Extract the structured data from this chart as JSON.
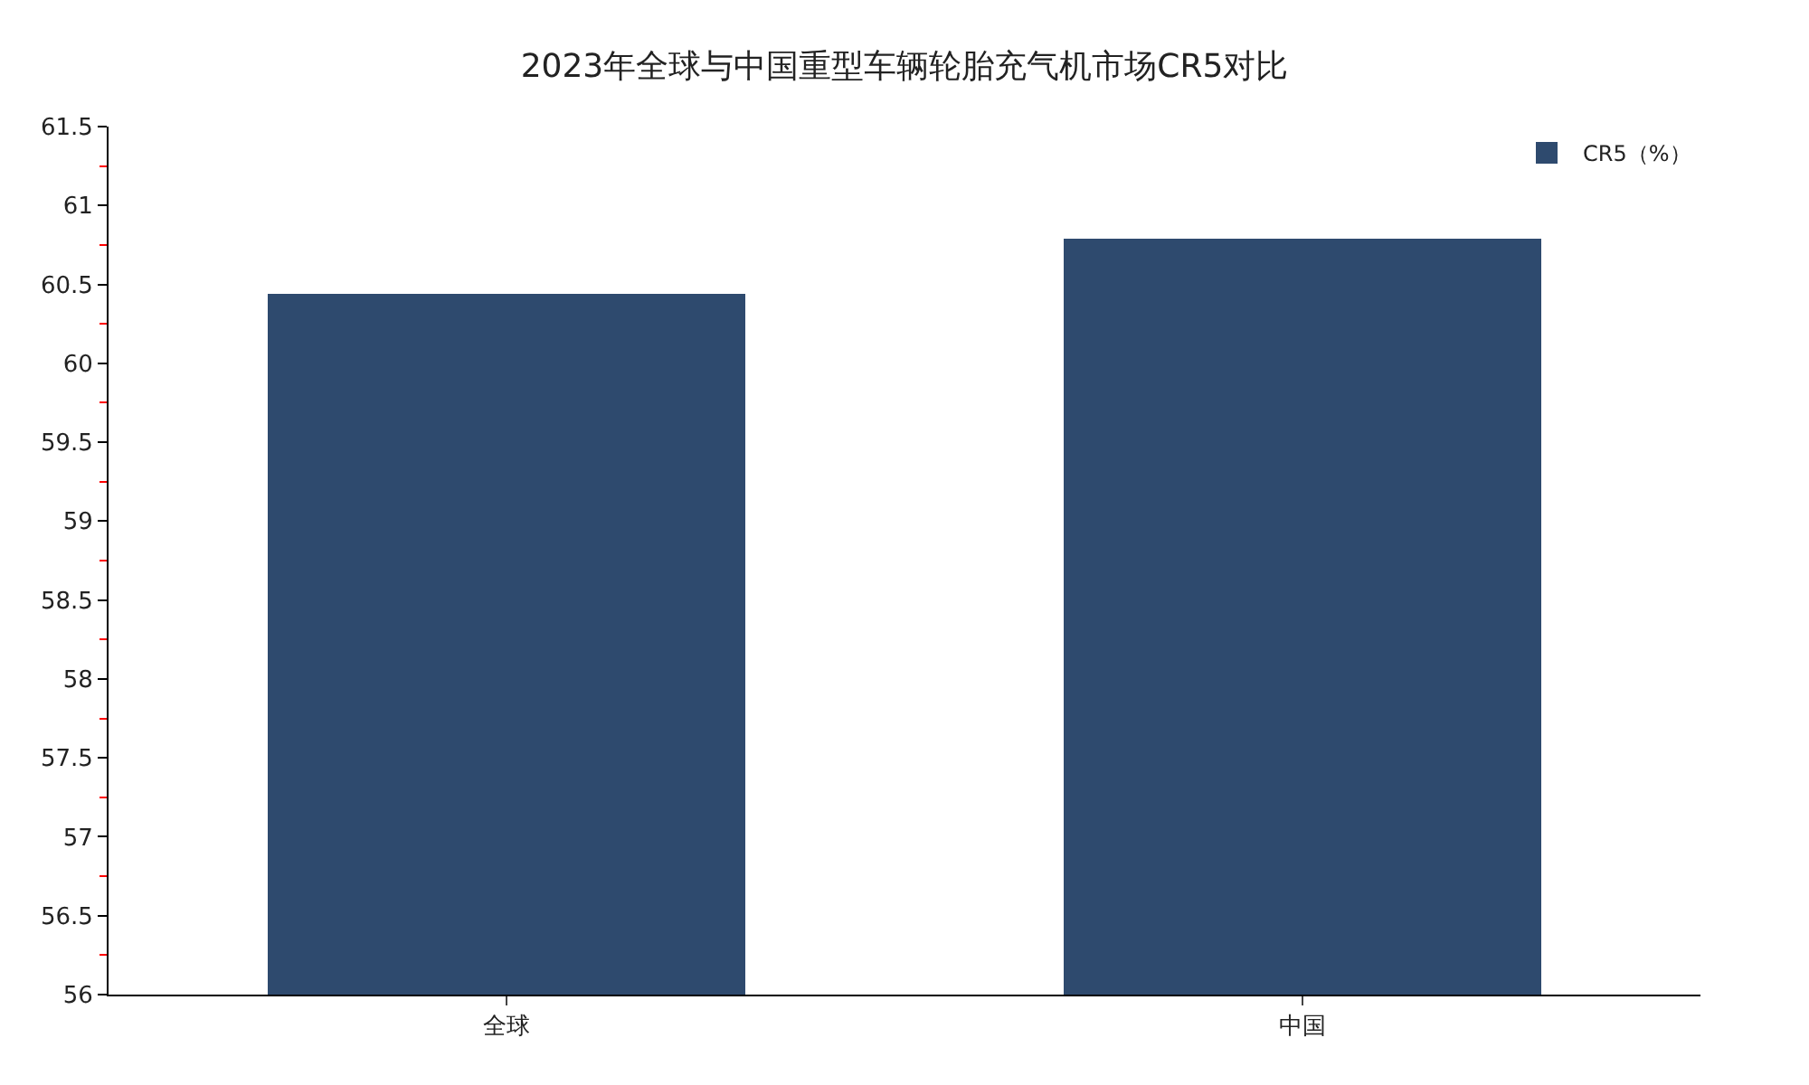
{
  "chart_data": {
    "type": "bar",
    "title": "2023年全球与中国重型车辆轮胎充气机市场CR5对比",
    "categories": [
      "全球",
      "中国"
    ],
    "series": [
      {
        "name": "CR5（%）",
        "color": "#2e4a6e",
        "values": [
          60.44,
          60.79
        ]
      }
    ],
    "ylim": [
      56,
      61.5
    ],
    "yticks": [
      56,
      56.5,
      57,
      57.5,
      58,
      58.5,
      59,
      59.5,
      60,
      60.5,
      61,
      61.5
    ],
    "legend": "top right"
  }
}
